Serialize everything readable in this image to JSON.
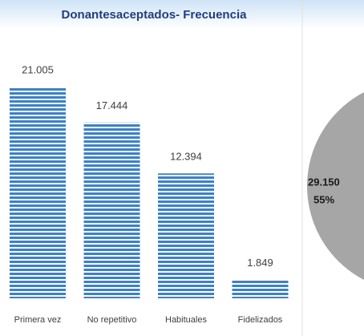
{
  "chart_data": [
    {
      "type": "bar",
      "title": "Donantesaceptados- Frecuencia",
      "categories": [
        "Primera vez",
        "No repetitivo",
        "Habituales",
        "Fidelizados"
      ],
      "values": [
        21005,
        17444,
        12394,
        1849
      ],
      "value_labels": [
        "21.005",
        "17.444",
        "12.394",
        "1.849"
      ],
      "color": "#3f7fc8"
    },
    {
      "type": "pie",
      "values": [
        29150
      ],
      "value_labels": [
        "29.150"
      ],
      "percents": [
        55
      ],
      "percent_labels": [
        "55%"
      ],
      "color": "#a6a6a6"
    }
  ]
}
